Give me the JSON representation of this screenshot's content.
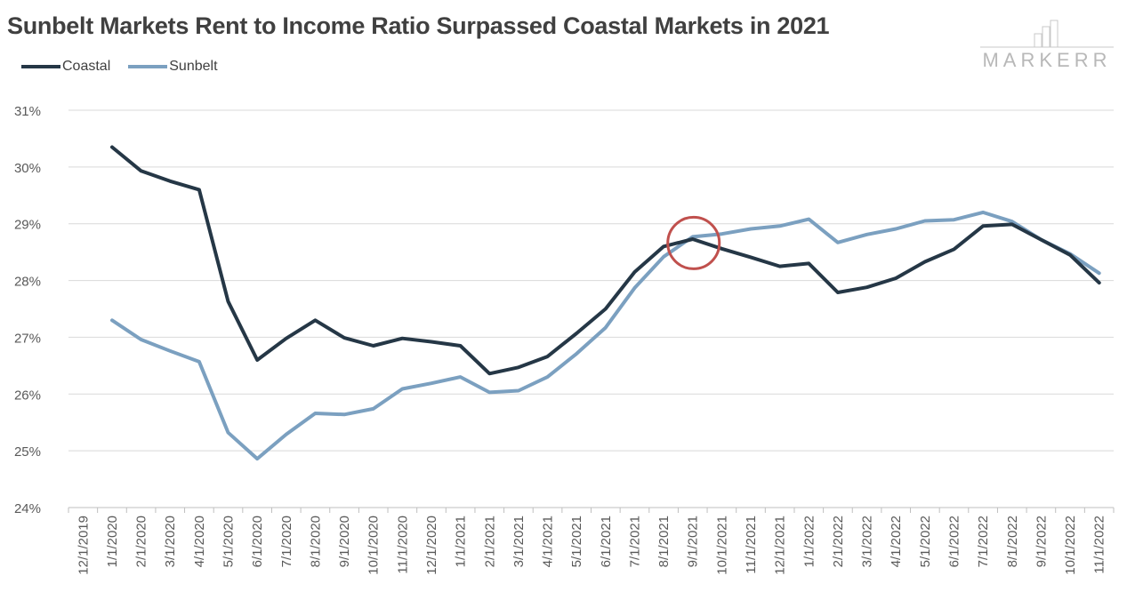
{
  "chart_data": {
    "type": "line",
    "title": "Sunbelt Markets Rent to Income Ratio Surpassed Coastal Markets in 2021",
    "xlabel": "",
    "ylabel": "",
    "categories": [
      "12/1/2019",
      "1/1/2020",
      "2/1/2020",
      "3/1/2020",
      "4/1/2020",
      "5/1/2020",
      "6/1/2020",
      "7/1/2020",
      "8/1/2020",
      "9/1/2020",
      "10/1/2020",
      "11/1/2020",
      "12/1/2020",
      "1/1/2021",
      "2/1/2021",
      "3/1/2021",
      "4/1/2021",
      "5/1/2021",
      "6/1/2021",
      "7/1/2021",
      "8/1/2021",
      "9/1/2021",
      "10/1/2021",
      "11/1/2021",
      "12/1/2021",
      "1/1/2022",
      "2/1/2022",
      "3/1/2022",
      "4/1/2022",
      "5/1/2022",
      "6/1/2022",
      "7/1/2022",
      "8/1/2022",
      "9/1/2022",
      "10/1/2022",
      "11/1/2022"
    ],
    "ylim": [
      24,
      31
    ],
    "y_ticks": [
      "24%",
      "25%",
      "26%",
      "27%",
      "28%",
      "29%",
      "30%",
      "31%"
    ],
    "series": [
      {
        "name": "Coastal",
        "color": "#253746",
        "values": [
          null,
          30.35,
          29.93,
          29.75,
          29.6,
          27.63,
          26.6,
          26.98,
          27.3,
          26.99,
          26.85,
          26.98,
          26.92,
          26.85,
          26.36,
          26.47,
          26.66,
          27.07,
          27.5,
          28.15,
          28.6,
          28.73,
          28.56,
          28.41,
          28.25,
          28.3,
          27.79,
          27.88,
          28.04,
          28.33,
          28.55,
          28.96,
          28.99,
          28.72,
          28.45,
          27.96
        ]
      },
      {
        "name": "Sunbelt",
        "color": "#7ba0c0",
        "values": [
          null,
          27.3,
          26.96,
          26.76,
          26.57,
          25.32,
          24.86,
          25.29,
          25.66,
          25.64,
          25.74,
          26.09,
          26.19,
          26.3,
          26.03,
          26.06,
          26.3,
          26.71,
          27.17,
          27.87,
          28.42,
          28.77,
          28.82,
          28.91,
          28.96,
          29.08,
          28.67,
          28.81,
          28.91,
          29.05,
          29.07,
          29.2,
          29.04,
          28.72,
          28.47,
          28.13
        ]
      }
    ],
    "annotation": {
      "type": "circle",
      "category": "9/1/2021",
      "value": 28.66,
      "color": "#c0504d"
    },
    "legend_position": "top-left",
    "grid": true
  },
  "brand": {
    "name": "MARKERR",
    "color": "#b8b8b8"
  }
}
